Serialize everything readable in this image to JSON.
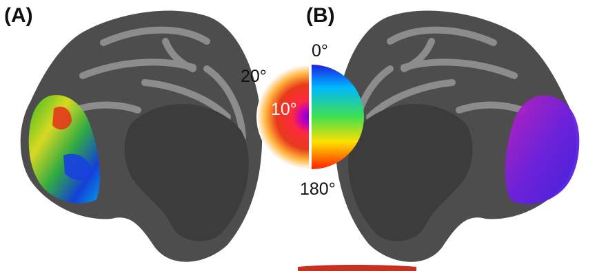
{
  "panels": {
    "a": {
      "label": "(A)"
    },
    "b": {
      "label": "(B)"
    }
  },
  "legend": {
    "eccentricity": {
      "outer_label": "20°",
      "inner_label": "10°"
    },
    "polar_angle": {
      "top_label": "0°",
      "bottom_label": "180°"
    }
  },
  "colors": {
    "brain_dark": "#4a4a4a",
    "brain_light": "#8c8c8c",
    "eccentricity_gradient": [
      "#7a00c8",
      "#ff2a40",
      "#e83a1a",
      "#ffd53a",
      "#ffffff"
    ],
    "polar_gradient": [
      "#1a20e0",
      "#00b8ff",
      "#40e050",
      "#ffe000",
      "#ff2000"
    ]
  },
  "icons": {
    "left_hemisphere": "inflated-cortex-medial-left",
    "right_hemisphere": "inflated-cortex-medial-right",
    "legend": "retinotopy-color-wheel"
  }
}
